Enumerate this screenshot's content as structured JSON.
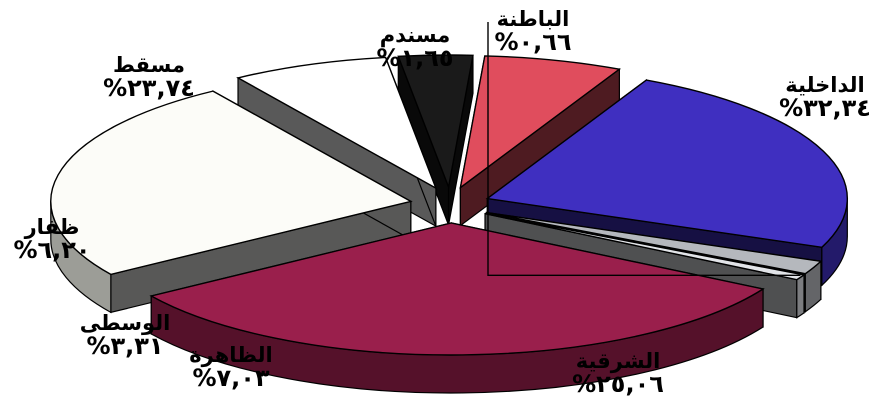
{
  "chart_data": {
    "type": "pie",
    "style": "exploded-3d",
    "percent_sign": "%",
    "slices": [
      {
        "name": "الداخلية",
        "value": 32.34,
        "value_text": "٣٢,٣٤",
        "color": "#9a1f4c"
      },
      {
        "name": "الشرقية",
        "value": 25.06,
        "value_text": "٢٥,٠٦",
        "color": "#fcfcf8"
      },
      {
        "name": "الظاهرة",
        "value": 7.03,
        "value_text": "٧,٠٣",
        "color": "#ffffff"
      },
      {
        "name": "الوسطى",
        "value": 3.31,
        "value_text": "٣,٣١",
        "color": "#1a1a1a"
      },
      {
        "name": "ظفار",
        "value": 6.2,
        "value_text": "٦,٢٠",
        "color": "#e04d5d"
      },
      {
        "name": "مسقط",
        "value": 23.74,
        "value_text": "٢٣,٧٤",
        "color": "#3f2fc0"
      },
      {
        "name": "مسندم",
        "value": 1.65,
        "value_text": "١,٦٥",
        "color": "#b5b8bd"
      },
      {
        "name": "الباطنة",
        "value": 0.66,
        "value_text": "٠,٦٦",
        "color": "#e2e4e8"
      }
    ]
  }
}
